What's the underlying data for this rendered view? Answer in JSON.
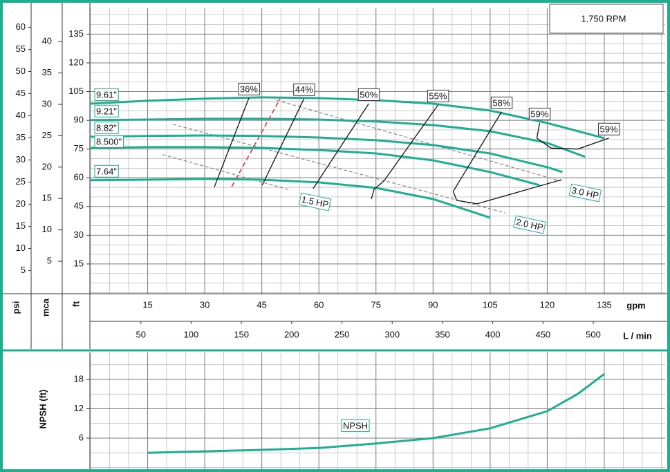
{
  "chart_data": [
    {
      "type": "line",
      "title": "1.750 RPM",
      "x_label": "gpm",
      "x2_label": "L / min",
      "y_label": "ft",
      "y2_label": "psi",
      "y3_label": "mca",
      "xlim": [
        0,
        151
      ],
      "xticks": [
        15,
        30,
        45,
        60,
        75,
        90,
        105,
        120,
        135
      ],
      "x2lim": [
        0,
        571.5
      ],
      "x2ticks": [
        50,
        100,
        150,
        200,
        250,
        300,
        350,
        400,
        450,
        500
      ],
      "ylim": [
        0,
        148.5
      ],
      "yticks": [
        15,
        30,
        45,
        60,
        75,
        90,
        105,
        120,
        135
      ],
      "y2lim": [
        0,
        64.3
      ],
      "y2ticks": [
        5,
        10,
        15,
        20,
        25,
        30,
        35,
        40,
        45,
        50,
        55,
        60
      ],
      "y3lim": [
        0,
        45.3
      ],
      "y3ticks": [
        5,
        10,
        15,
        20,
        25,
        30,
        35,
        40
      ],
      "grid": true,
      "series": [
        {
          "name": "9.61\"",
          "color": "#1fae8f",
          "x": [
            0,
            15,
            30,
            45,
            60,
            75,
            90,
            105,
            120,
            135
          ],
          "values": [
            98.7,
            100.2,
            101.3,
            102.0,
            101.6,
            100.5,
            98.7,
            95.1,
            88.6,
            80.7
          ]
        },
        {
          "name": "9.21\"",
          "color": "#1fae8f",
          "x": [
            0,
            15,
            30,
            45,
            60,
            75,
            90,
            105,
            120,
            130
          ],
          "values": [
            90.1,
            90.4,
            90.8,
            90.8,
            90.4,
            89.4,
            87.5,
            84.3,
            78.2,
            70.9
          ]
        },
        {
          "name": "8.82\"",
          "color": "#1fae8f",
          "x": [
            0,
            15,
            30,
            45,
            60,
            75,
            90,
            105,
            120,
            124
          ],
          "values": [
            81.4,
            81.8,
            82.1,
            81.8,
            81.0,
            79.6,
            77.1,
            72.7,
            65.5,
            63.0
          ]
        },
        {
          "name": "8.500\"",
          "color": "#1fae8f",
          "x": [
            0,
            15,
            30,
            45,
            60,
            75,
            90,
            105,
            118
          ],
          "values": [
            75.6,
            76.0,
            76.0,
            75.6,
            74.5,
            72.7,
            69.1,
            63.0,
            56.1
          ]
        },
        {
          "name": "7.64\"",
          "color": "#1fae8f",
          "x": [
            0,
            15,
            30,
            45,
            60,
            75,
            90,
            105
          ],
          "values": [
            58.7,
            59.0,
            59.4,
            59.0,
            57.6,
            54.7,
            48.9,
            39.2
          ]
        }
      ],
      "efficiency": [
        {
          "name": "36%",
          "x": [
            41.6,
            32.5
          ],
          "values": [
            101.6,
            55.1
          ]
        },
        {
          "name": "44%",
          "x": [
            56.1,
            45.1
          ],
          "values": [
            101.3,
            56.1
          ]
        },
        {
          "name": "50%",
          "x": [
            73.1,
            58.5
          ],
          "values": [
            98.7,
            54.3
          ]
        },
        {
          "name": "55%",
          "x": [
            91.3,
            77.1,
            74.5,
            73.8
          ],
          "values": [
            98.0,
            58.3,
            54.0,
            48.9
          ]
        },
        {
          "name": "58%",
          "x": [
            108.0,
            95.3,
            96.2,
            101.6,
            123.8
          ],
          "values": [
            94.4,
            52.9,
            48.2,
            46.4,
            59.0
          ]
        },
        {
          "name": "59%",
          "x": [
            118.0,
            117.3,
            121.0
          ],
          "values": [
            88.6,
            80.7,
            75.5
          ]
        },
        {
          "name": "59%",
          "x": [
            136.2,
            128.0,
            121.0
          ],
          "values": [
            80.7,
            75.0,
            75.5
          ]
        }
      ],
      "power": [
        {
          "name": "1.5 HP",
          "x": [
            18.9,
            52.5
          ],
          "values": [
            72.1,
            53.6
          ]
        },
        {
          "name": "2.0 HP",
          "x": [
            21.6,
            108.9
          ],
          "values": [
            87.9,
            41.7
          ]
        },
        {
          "name": "3.0 HP",
          "x": [
            48.9,
            123.5
          ],
          "values": [
            100.5,
            58.3
          ]
        }
      ],
      "marker_line": {
        "color": "#e02b2b",
        "x": [
          37.1,
          49.8
        ],
        "values": [
          55.4,
          101.3
        ]
      }
    },
    {
      "type": "line",
      "y_label": "NPSH (ft)",
      "xlim": [
        0,
        151
      ],
      "ylim": [
        0,
        23.5
      ],
      "yticks": [
        6,
        12,
        18
      ],
      "grid": true,
      "series": [
        {
          "name": "NPSH",
          "color": "#1fae8f",
          "x": [
            15,
            30,
            45,
            60,
            75,
            90,
            105,
            120,
            128,
            135
          ],
          "values": [
            3.0,
            3.3,
            3.6,
            4.0,
            4.9,
            6.0,
            8.0,
            11.5,
            15.0,
            19.1
          ]
        }
      ]
    }
  ]
}
